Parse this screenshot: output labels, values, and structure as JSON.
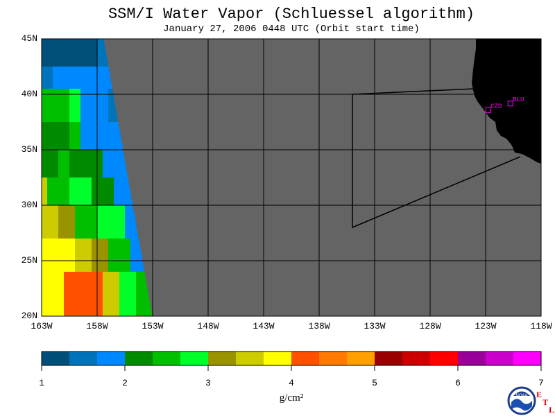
{
  "title": "SSM/I Water Vapor (Schluessel algorithm)",
  "subtitle": "January 27, 2006  0448 UTC  (Orbit start time)",
  "map": {
    "lat_ticks": [
      "45N",
      "40N",
      "35N",
      "30N",
      "25N",
      "20N"
    ],
    "lon_ticks": [
      "163W",
      "158W",
      "153W",
      "148W",
      "143W",
      "138W",
      "133W",
      "128W",
      "123W",
      "118W"
    ],
    "lat_range": [
      20,
      45
    ],
    "lon_range": [
      -163,
      -118
    ],
    "no_data_color": "#646464",
    "land_color": "#000000",
    "gridlines": true,
    "stations": [
      {
        "id": "CZD",
        "lon": -122.8,
        "lat": 38.6
      },
      {
        "id": "BLU",
        "lon": -120.8,
        "lat": 39.2
      }
    ]
  },
  "colorbar": {
    "labels": [
      "1",
      "2",
      "3",
      "4",
      "5",
      "6",
      "7"
    ],
    "unit": "g/cm²",
    "colors": [
      "#004f7a",
      "#0074bb",
      "#0088ff",
      "#008a00",
      "#00bf00",
      "#00ff2a",
      "#9a9300",
      "#cccc00",
      "#ffff00",
      "#ff5000",
      "#ff7a00",
      "#ffa000",
      "#990000",
      "#cc0000",
      "#ff0000",
      "#990099",
      "#cc00cc",
      "#ff00ff"
    ]
  },
  "logo": {
    "text": "NOAA",
    "letters": [
      "E",
      "T",
      "L"
    ]
  }
}
